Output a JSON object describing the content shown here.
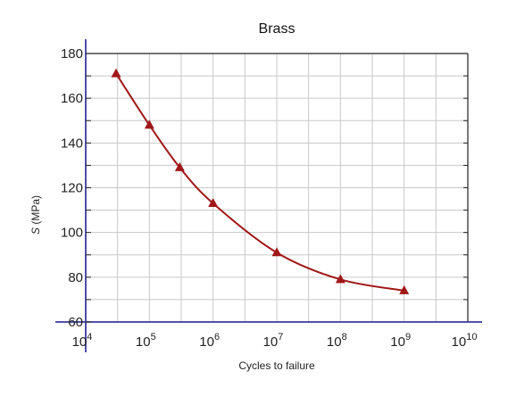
{
  "chart_data": {
    "type": "line",
    "title": "Brass",
    "xlabel": "Cycles to failure",
    "ylabel": "S (MPa)",
    "x_scale": "log",
    "xlim": [
      10000,
      10000000000
    ],
    "ylim": [
      60,
      180
    ],
    "y_ticks": [
      60,
      80,
      100,
      120,
      140,
      160,
      180
    ],
    "x_ticks": [
      {
        "value": 10000,
        "base": "10",
        "exp": "4"
      },
      {
        "value": 100000,
        "base": "10",
        "exp": "5"
      },
      {
        "value": 1000000,
        "base": "10",
        "exp": "6"
      },
      {
        "value": 10000000,
        "base": "10",
        "exp": "7"
      },
      {
        "value": 100000000,
        "base": "10",
        "exp": "8"
      },
      {
        "value": 1000000000,
        "base": "10",
        "exp": "9"
      },
      {
        "value": 10000000000,
        "base": "10",
        "exp": "10"
      }
    ],
    "grid": true,
    "series": [
      {
        "marker": "triangle",
        "color": "#a01818",
        "points": [
          {
            "x": 30000,
            "y": 171
          },
          {
            "x": 100000,
            "y": 148
          },
          {
            "x": 300000,
            "y": 129
          },
          {
            "x": 1000000,
            "y": 113
          },
          {
            "x": 10000000,
            "y": 91
          },
          {
            "x": 100000000,
            "y": 79
          },
          {
            "x": 1000000000,
            "y": 74
          }
        ]
      }
    ],
    "colors": {
      "axis": "#3a3aa0",
      "grid": "#c8c8c8",
      "frame": "#222222"
    }
  }
}
